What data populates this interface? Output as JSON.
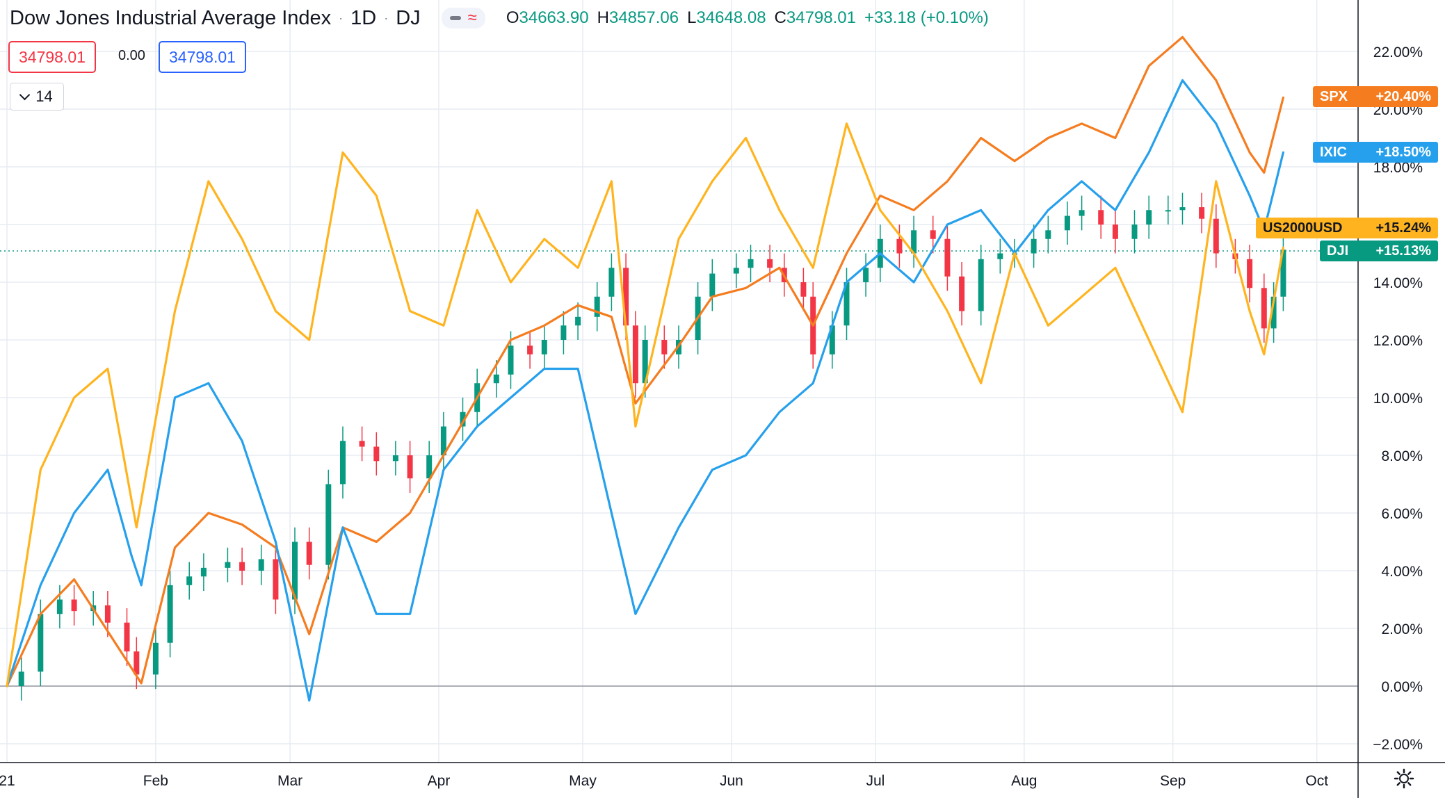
{
  "header": {
    "title": "Dow Jones Industrial Average Index",
    "interval": "1D",
    "exchange": "DJ",
    "ohlc": {
      "open_label": "O",
      "open": "34663.90",
      "high_label": "H",
      "high": "34857.06",
      "low_label": "L",
      "low": "34648.08",
      "close_label": "C",
      "close": "34798.01"
    },
    "change": "+33.18 (+0.10%)"
  },
  "trade": {
    "bid": "34798.01",
    "spread": "0.00",
    "ask": "34798.01"
  },
  "indicators_toggle": {
    "count": "14"
  },
  "series_tags": [
    {
      "symbol": "SPX",
      "value": "+20.40%",
      "color": "#f57c1f"
    },
    {
      "symbol": "IXIC",
      "value": "+18.50%",
      "color": "#26a0ec"
    },
    {
      "symbol": "US2000USD",
      "value": "+15.24%",
      "color": "#ffb41f"
    },
    {
      "symbol": "DJI",
      "value": "+15.13%",
      "color": "#089981"
    }
  ],
  "colors": {
    "up": "#089981",
    "down": "#f23645",
    "spx": "#f57c1f",
    "ixic": "#26a0ec",
    "rut": "#ffb41f",
    "grid": "#e7ecf2"
  },
  "icons": {
    "settings": "gear-icon",
    "collapse": "chevron-down-icon"
  },
  "chart_data": {
    "type": "line",
    "y_unit": "percent",
    "ylim": [
      -3,
      24
    ],
    "yticks": [
      -2,
      0,
      2,
      4,
      6,
      8,
      10,
      12,
      14,
      16,
      18,
      20,
      22
    ],
    "ytick_labels": [
      "−2.00%",
      "0.00%",
      "2.00%",
      "4.00%",
      "6.00%",
      "8.00%",
      "10.00%",
      "12.00%",
      "14.00%",
      "16.00%",
      "18.00%",
      "20.00%",
      "22.00%"
    ],
    "x_range": [
      "2021-01-01",
      "2021-10-15"
    ],
    "xticks": [
      {
        "date": "2021-01-01",
        "label": "21"
      },
      {
        "date": "2021-02-01",
        "label": "Feb"
      },
      {
        "date": "2021-03-01",
        "label": "Mar"
      },
      {
        "date": "2021-04-01",
        "label": "Apr"
      },
      {
        "date": "2021-05-01",
        "label": "May"
      },
      {
        "date": "2021-06-01",
        "label": "Jun"
      },
      {
        "date": "2021-07-01",
        "label": "Jul"
      },
      {
        "date": "2021-08-01",
        "label": "Aug"
      },
      {
        "date": "2021-09-01",
        "label": "Sep"
      },
      {
        "date": "2021-10-01",
        "label": "Oct"
      }
    ],
    "grid": true,
    "baseline": 0,
    "series": [
      {
        "name": "SPX",
        "style": "line",
        "x": [
          "2021-01-01",
          "2021-01-08",
          "2021-01-15",
          "2021-01-22",
          "2021-01-29",
          "2021-02-05",
          "2021-02-12",
          "2021-02-19",
          "2021-02-26",
          "2021-03-05",
          "2021-03-12",
          "2021-03-19",
          "2021-03-26",
          "2021-04-02",
          "2021-04-09",
          "2021-04-16",
          "2021-04-23",
          "2021-04-30",
          "2021-05-07",
          "2021-05-12",
          "2021-05-21",
          "2021-05-28",
          "2021-06-04",
          "2021-06-11",
          "2021-06-18",
          "2021-06-25",
          "2021-07-02",
          "2021-07-09",
          "2021-07-16",
          "2021-07-23",
          "2021-07-30",
          "2021-08-06",
          "2021-08-13",
          "2021-08-20",
          "2021-08-27",
          "2021-09-03",
          "2021-09-10",
          "2021-09-17",
          "2021-09-20",
          "2021-09-24"
        ],
        "y": [
          0.0,
          2.5,
          3.7,
          1.9,
          0.1,
          4.8,
          6.0,
          5.6,
          4.8,
          1.8,
          5.5,
          5.0,
          6.0,
          8.0,
          10.0,
          12.0,
          12.5,
          13.2,
          12.8,
          9.8,
          11.8,
          13.5,
          13.8,
          14.5,
          12.5,
          15.0,
          17.0,
          16.5,
          17.5,
          19.0,
          18.2,
          19.0,
          19.5,
          19.0,
          21.5,
          22.5,
          21.0,
          18.5,
          17.8,
          20.4
        ]
      },
      {
        "name": "IXIC",
        "style": "line",
        "x": [
          "2021-01-01",
          "2021-01-08",
          "2021-01-15",
          "2021-01-22",
          "2021-01-27",
          "2021-01-29",
          "2021-02-05",
          "2021-02-12",
          "2021-02-19",
          "2021-02-26",
          "2021-03-05",
          "2021-03-12",
          "2021-03-19",
          "2021-03-26",
          "2021-04-02",
          "2021-04-09",
          "2021-04-16",
          "2021-04-23",
          "2021-04-30",
          "2021-05-07",
          "2021-05-12",
          "2021-05-21",
          "2021-05-28",
          "2021-06-04",
          "2021-06-11",
          "2021-06-18",
          "2021-06-25",
          "2021-07-02",
          "2021-07-09",
          "2021-07-16",
          "2021-07-23",
          "2021-07-30",
          "2021-08-06",
          "2021-08-13",
          "2021-08-20",
          "2021-08-27",
          "2021-09-03",
          "2021-09-10",
          "2021-09-17",
          "2021-09-20",
          "2021-09-24"
        ],
        "y": [
          0.0,
          3.5,
          6.0,
          7.5,
          4.5,
          3.5,
          10.0,
          10.5,
          8.5,
          5.0,
          -0.5,
          5.5,
          2.5,
          2.5,
          7.5,
          9.0,
          10.0,
          11.0,
          11.0,
          6.0,
          2.5,
          5.5,
          7.5,
          8.0,
          9.5,
          10.5,
          14.0,
          15.0,
          14.0,
          16.0,
          16.5,
          15.0,
          16.5,
          17.5,
          16.5,
          18.5,
          21.0,
          19.5,
          17.0,
          15.8,
          18.5
        ]
      },
      {
        "name": "US2000USD",
        "style": "line",
        "x": [
          "2021-01-01",
          "2021-01-08",
          "2021-01-15",
          "2021-01-22",
          "2021-01-28",
          "2021-02-05",
          "2021-02-12",
          "2021-02-19",
          "2021-02-26",
          "2021-03-05",
          "2021-03-12",
          "2021-03-19",
          "2021-03-26",
          "2021-04-02",
          "2021-04-09",
          "2021-04-16",
          "2021-04-23",
          "2021-04-30",
          "2021-05-07",
          "2021-05-12",
          "2021-05-21",
          "2021-05-28",
          "2021-06-04",
          "2021-06-11",
          "2021-06-18",
          "2021-06-25",
          "2021-07-02",
          "2021-07-09",
          "2021-07-16",
          "2021-07-23",
          "2021-07-30",
          "2021-08-06",
          "2021-08-13",
          "2021-08-20",
          "2021-08-27",
          "2021-09-03",
          "2021-09-10",
          "2021-09-17",
          "2021-09-20",
          "2021-09-24"
        ],
        "y": [
          0.0,
          7.5,
          10.0,
          11.0,
          5.5,
          13.0,
          17.5,
          15.5,
          13.0,
          12.0,
          18.5,
          17.0,
          13.0,
          12.5,
          16.5,
          14.0,
          15.5,
          14.5,
          17.5,
          9.0,
          15.5,
          17.5,
          19.0,
          16.5,
          14.5,
          19.5,
          16.5,
          15.0,
          13.0,
          10.5,
          15.0,
          12.5,
          13.5,
          14.5,
          12.0,
          9.5,
          17.5,
          13.0,
          11.5,
          15.2
        ]
      },
      {
        "name": "DJI",
        "style": "candlestick",
        "x": [
          "2021-01-04",
          "2021-01-08",
          "2021-01-12",
          "2021-01-15",
          "2021-01-19",
          "2021-01-22",
          "2021-01-26",
          "2021-01-28",
          "2021-02-01",
          "2021-02-04",
          "2021-02-08",
          "2021-02-11",
          "2021-02-16",
          "2021-02-19",
          "2021-02-23",
          "2021-02-26",
          "2021-03-02",
          "2021-03-05",
          "2021-03-09",
          "2021-03-12",
          "2021-03-16",
          "2021-03-19",
          "2021-03-23",
          "2021-03-26",
          "2021-03-30",
          "2021-04-02",
          "2021-04-06",
          "2021-04-09",
          "2021-04-13",
          "2021-04-16",
          "2021-04-20",
          "2021-04-23",
          "2021-04-27",
          "2021-04-30",
          "2021-05-04",
          "2021-05-07",
          "2021-05-10",
          "2021-05-12",
          "2021-05-14",
          "2021-05-18",
          "2021-05-21",
          "2021-05-25",
          "2021-05-28",
          "2021-06-02",
          "2021-06-05",
          "2021-06-09",
          "2021-06-12",
          "2021-06-16",
          "2021-06-18",
          "2021-06-22",
          "2021-06-25",
          "2021-06-29",
          "2021-07-02",
          "2021-07-06",
          "2021-07-09",
          "2021-07-13",
          "2021-07-16",
          "2021-07-19",
          "2021-07-23",
          "2021-07-27",
          "2021-07-30",
          "2021-08-03",
          "2021-08-06",
          "2021-08-10",
          "2021-08-13",
          "2021-08-17",
          "2021-08-20",
          "2021-08-24",
          "2021-08-27",
          "2021-08-31",
          "2021-09-03",
          "2021-09-07",
          "2021-09-10",
          "2021-09-14",
          "2021-09-17",
          "2021-09-20",
          "2021-09-22",
          "2021-09-24"
        ],
        "y": [
          0.5,
          2.5,
          3.0,
          2.6,
          2.8,
          2.2,
          1.2,
          0.4,
          1.5,
          3.5,
          3.8,
          4.1,
          4.3,
          4.0,
          4.4,
          3.0,
          5.0,
          4.2,
          7.0,
          8.5,
          8.3,
          7.8,
          8.0,
          7.2,
          8.0,
          9.0,
          9.5,
          10.5,
          10.8,
          11.8,
          11.5,
          12.0,
          12.5,
          12.8,
          13.5,
          14.5,
          12.5,
          10.5,
          12.0,
          11.5,
          12.0,
          13.5,
          14.3,
          14.5,
          14.8,
          14.5,
          14.0,
          13.5,
          11.5,
          12.5,
          14.0,
          14.5,
          15.5,
          15.0,
          15.8,
          15.5,
          14.2,
          13.0,
          14.8,
          15.0,
          15.0,
          15.5,
          15.8,
          16.3,
          16.5,
          16.0,
          15.5,
          16.0,
          16.5,
          16.5,
          16.6,
          16.2,
          15.0,
          14.8,
          13.8,
          12.4,
          13.5,
          15.13
        ]
      }
    ]
  }
}
